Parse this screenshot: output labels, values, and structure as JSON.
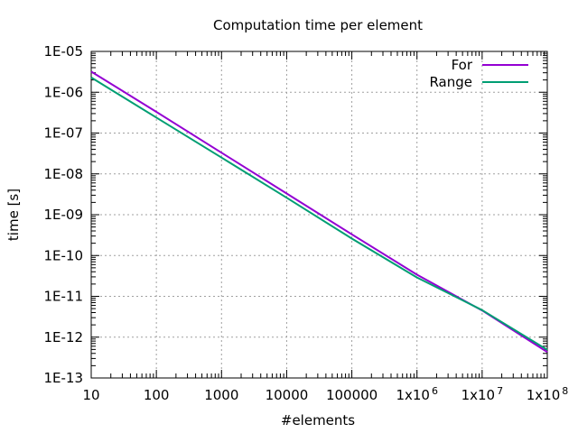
{
  "chart_data": {
    "type": "line",
    "title": "Computation time per element",
    "xlabel": "#elements",
    "ylabel": "time [s]",
    "xscale": "log",
    "yscale": "log",
    "xlim": [
      10,
      100000000
    ],
    "ylim": [
      1e-13,
      1e-05
    ],
    "grid": true,
    "legend_position": "top-right",
    "x_tick_labels": [
      {
        "base": "10",
        "exp": ""
      },
      {
        "base": "100",
        "exp": ""
      },
      {
        "base": "1000",
        "exp": ""
      },
      {
        "base": "10000",
        "exp": ""
      },
      {
        "base": "100000",
        "exp": ""
      },
      {
        "base": "1x10",
        "exp": "6"
      },
      {
        "base": "1x10",
        "exp": "7"
      },
      {
        "base": "1x10",
        "exp": "8"
      }
    ],
    "y_tick_labels": [
      "1E-13",
      "1E-12",
      "1E-11",
      "1E-10",
      "1E-09",
      "1E-08",
      "1E-07",
      "1E-06",
      "1E-05"
    ],
    "x": [
      10,
      100,
      1000,
      10000,
      100000,
      1000000,
      10000000,
      100000000
    ],
    "series": [
      {
        "name": "For",
        "color": "#9400d3",
        "values": [
          3.2e-06,
          3.3e-07,
          3.3e-08,
          3.3e-09,
          3.3e-10,
          3.4e-11,
          4.5e-12,
          4.3e-13
        ]
      },
      {
        "name": "Range",
        "color": "#009e73",
        "values": [
          2.3e-06,
          2.4e-07,
          2.5e-08,
          2.6e-09,
          2.6e-10,
          2.9e-11,
          4.6e-12,
          4.9e-13
        ]
      }
    ]
  }
}
